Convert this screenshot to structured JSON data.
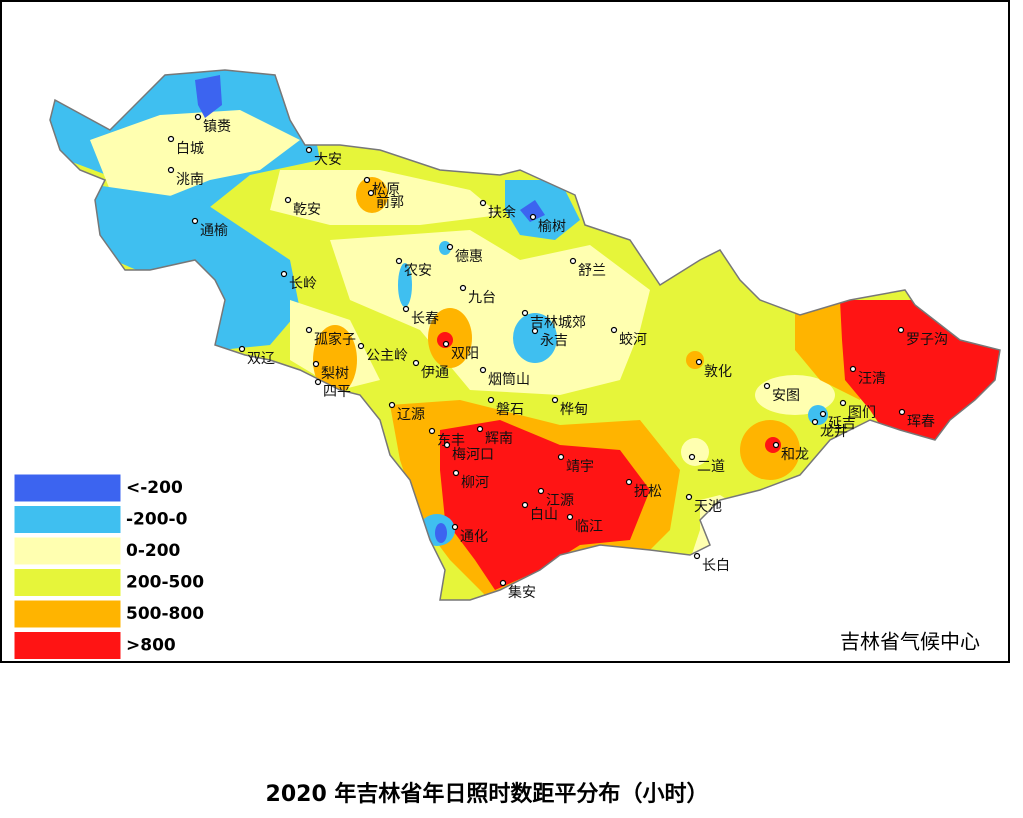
{
  "map": {
    "title": "2020 年吉林省年日照时数距平分布（小时）",
    "source": "吉林省气候中心",
    "legend": [
      {
        "label": "<-200",
        "color": "#3c64f0"
      },
      {
        "label": "-200-0",
        "color": "#3fbff0"
      },
      {
        "label": "0-200",
        "color": "#ffffb0"
      },
      {
        "label": "200-500",
        "color": "#e6f53a"
      },
      {
        "label": "500-800",
        "color": "#ffb400"
      },
      {
        "label": ">800",
        "color": "#ff1414"
      }
    ],
    "cities": [
      "镇赉",
      "白城",
      "洮南",
      "大安",
      "松原",
      "前郭",
      "乾安",
      "扶余",
      "榆树",
      "通榆",
      "德惠",
      "农安",
      "舒兰",
      "长岭",
      "九台",
      "长春",
      "吉林城郊",
      "蛟河",
      "永吉",
      "双辽",
      "孤家子",
      "双阳",
      "公主岭",
      "梨树",
      "伊通",
      "烟筒山",
      "敦化",
      "四平",
      "安图",
      "辽源",
      "磐石",
      "桦甸",
      "汪清",
      "罗子沟",
      "图们",
      "珲春",
      "延吉",
      "龙井",
      "和龙",
      "东丰",
      "辉南",
      "梅河口",
      "二道",
      "靖宇",
      "柳河",
      "江源",
      "抚松",
      "天池",
      "白山",
      "临江",
      "通化",
      "长白",
      "集安"
    ]
  }
}
